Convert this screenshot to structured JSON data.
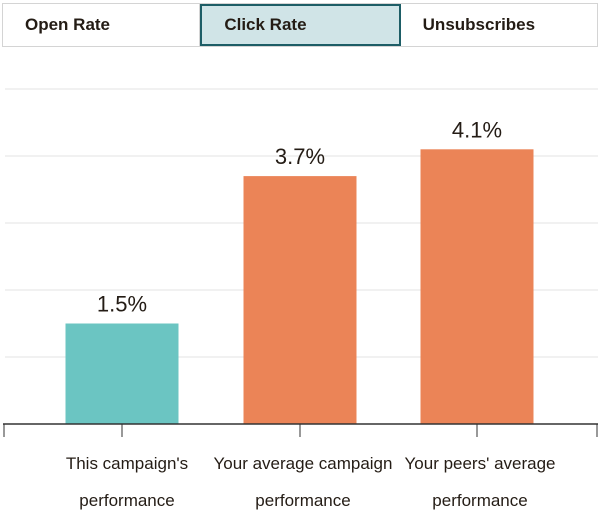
{
  "tabs": [
    {
      "label": "Open Rate",
      "active": false
    },
    {
      "label": "Click Rate",
      "active": true
    },
    {
      "label": "Unsubscribes",
      "active": false
    }
  ],
  "colors": {
    "this_campaign": "#6bc5c2",
    "comparison": "#eb8457",
    "grid": "#e3e3e3",
    "axis": "#333333",
    "active_tab_bg": "#d0e4e7",
    "active_tab_border": "#1d5d66"
  },
  "chart_data": {
    "type": "bar",
    "categories": [
      "This campaign's performance",
      "Your average campaign performance",
      "Your peers' average performance"
    ],
    "category_lines": [
      [
        "This campaign's",
        "performance"
      ],
      [
        "Your average campaign",
        "performance"
      ],
      [
        "Your peers' average",
        "performance"
      ]
    ],
    "values": [
      1.5,
      3.7,
      4.1
    ],
    "value_labels": [
      "1.5%",
      "3.7%",
      "4.1%"
    ],
    "bar_colors": [
      "#6bc5c2",
      "#eb8457",
      "#eb8457"
    ],
    "ylim": [
      0,
      5
    ],
    "grid": true,
    "title": "",
    "xlabel": "",
    "ylabel": ""
  }
}
